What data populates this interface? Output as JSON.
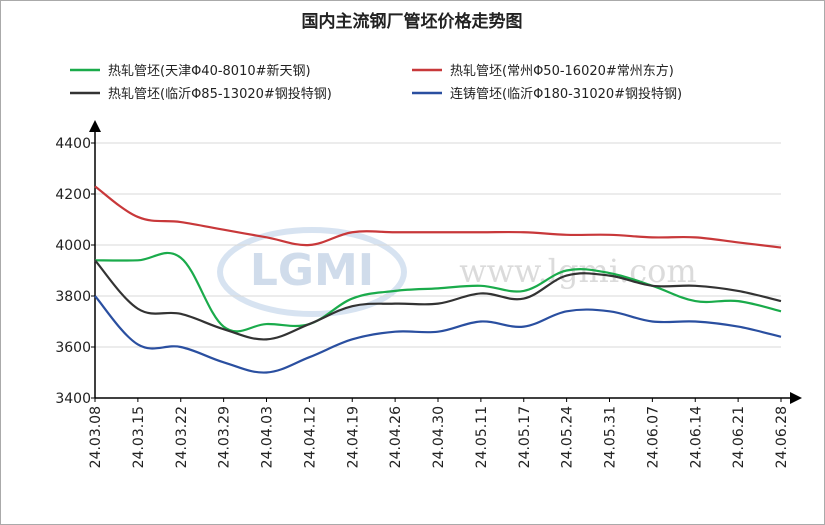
{
  "chart_data": {
    "type": "line",
    "title": "国内主流钢厂管坯价格走势图",
    "watermark": "www.lgmi.com",
    "logo": "LGMI",
    "categories": [
      "24.03.08",
      "24.03.15",
      "24.03.22",
      "24.03.29",
      "24.04.03",
      "24.04.12",
      "24.04.19",
      "24.04.26",
      "24.04.30",
      "24.05.11",
      "24.05.17",
      "24.05.24",
      "24.05.31",
      "24.06.07",
      "24.06.14",
      "24.06.21",
      "24.06.28"
    ],
    "series": [
      {
        "name": "热轧管坯(天津Φ40-8010#新天钢)",
        "color": "#1aab4b",
        "values": [
          3940,
          3940,
          3950,
          3680,
          3690,
          3690,
          3790,
          3820,
          3830,
          3840,
          3820,
          3900,
          3890,
          3840,
          3780,
          3780,
          3740
        ]
      },
      {
        "name": "热轧管坯(常州Φ50-16020#常州东方)",
        "color": "#c8383a",
        "values": [
          4230,
          4110,
          4090,
          4060,
          4030,
          4000,
          4050,
          4050,
          4050,
          4050,
          4050,
          4040,
          4040,
          4030,
          4030,
          4010,
          3990
        ]
      },
      {
        "name": "热轧管坯(临沂Φ85-13020#钢投特钢)",
        "color": "#333333",
        "values": [
          3940,
          3750,
          3730,
          3670,
          3630,
          3690,
          3760,
          3770,
          3770,
          3810,
          3790,
          3880,
          3880,
          3840,
          3840,
          3820,
          3780
        ]
      },
      {
        "name": "连铸管坯(临沂Φ180-31020#钢投特钢)",
        "color": "#2a4fa0",
        "values": [
          3800,
          3610,
          3600,
          3540,
          3500,
          3560,
          3630,
          3660,
          3660,
          3700,
          3680,
          3740,
          3740,
          3700,
          3700,
          3680,
          3640
        ]
      }
    ],
    "ylim": [
      3400,
      4400
    ],
    "yticks": [
      3400,
      3600,
      3800,
      4000,
      4200,
      4400
    ],
    "grid": true
  }
}
